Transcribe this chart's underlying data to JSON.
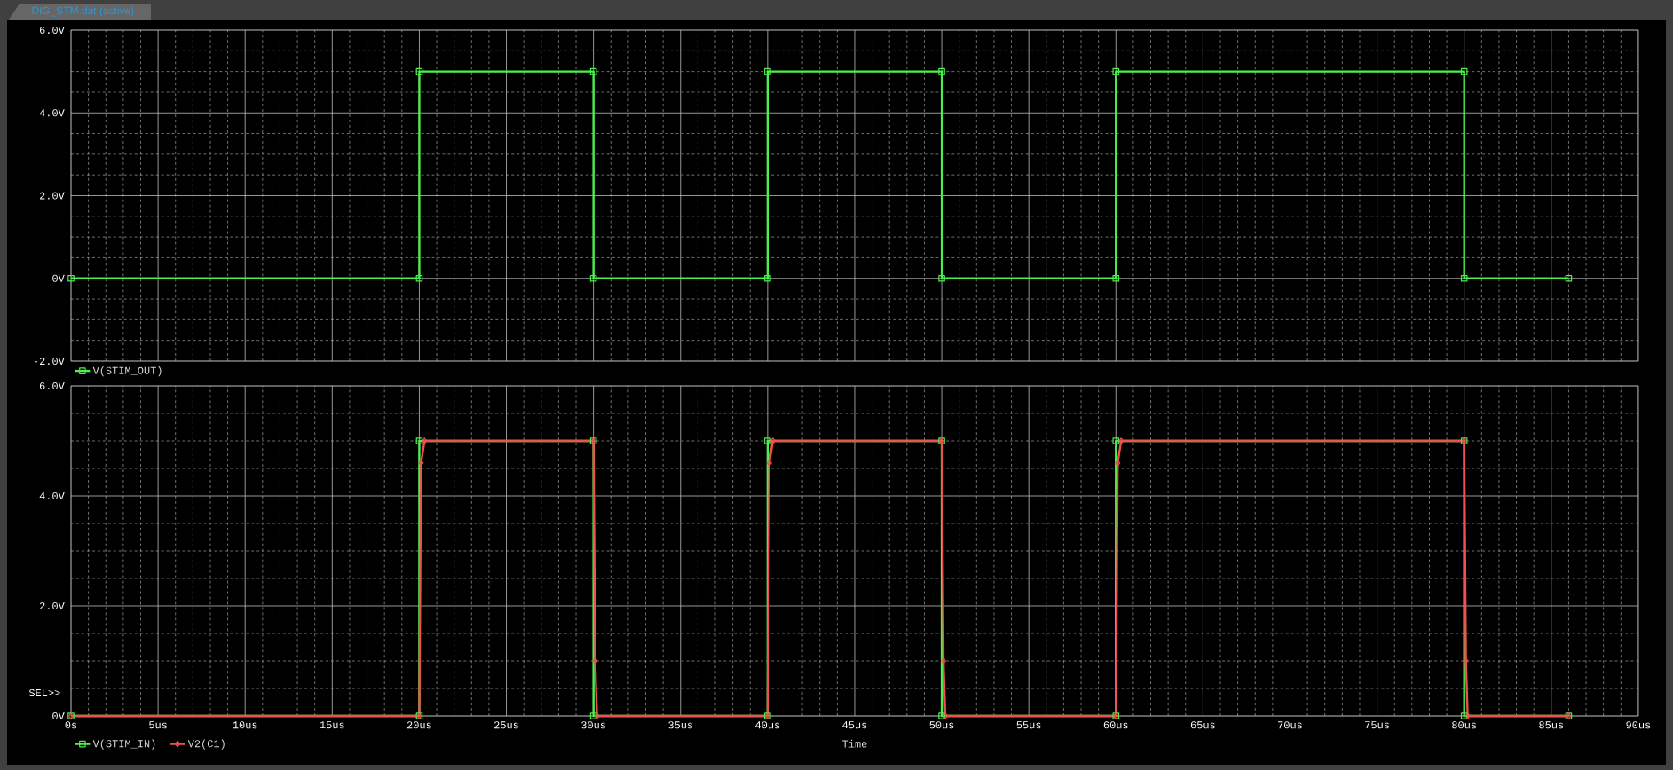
{
  "chart_data": [
    {
      "type": "line",
      "title": "DIG_STM.dat (active)",
      "xlim": [
        0,
        90
      ],
      "ylim": [
        -2,
        6
      ],
      "xticks": [
        0,
        5,
        10,
        15,
        20,
        25,
        30,
        35,
        40,
        45,
        50,
        55,
        60,
        65,
        70,
        75,
        80,
        85,
        90
      ],
      "yticks": [
        {
          "value": -2,
          "label": "-2.0V"
        },
        {
          "value": 0,
          "label": "0V"
        },
        {
          "value": 2,
          "label": "2.0V"
        },
        {
          "value": 4,
          "label": "4.0V"
        },
        {
          "value": 6,
          "label": "6.0V"
        }
      ],
      "tick_labels": "y",
      "grid": true,
      "legend": "bottom left",
      "marker": "square",
      "line_style": "solid",
      "series": [
        {
          "name": "V(STIM_OUT)",
          "color": "#4cf04c",
          "x": [
            0,
            20,
            20,
            30,
            30,
            40,
            40,
            50,
            50,
            60,
            60,
            80,
            80,
            86
          ],
          "values": [
            0,
            0,
            5,
            5,
            0,
            0,
            5,
            5,
            0,
            0,
            5,
            5,
            0,
            0
          ]
        }
      ]
    },
    {
      "type": "line",
      "xlabel": "Time",
      "xlim": [
        0,
        90
      ],
      "ylim": [
        0,
        6
      ],
      "xticks": [
        {
          "value": 0,
          "label": "0s"
        },
        {
          "value": 5,
          "label": "5us"
        },
        {
          "value": 10,
          "label": "10us"
        },
        {
          "value": 15,
          "label": "15us"
        },
        {
          "value": 20,
          "label": "20us"
        },
        {
          "value": 25,
          "label": "25us"
        },
        {
          "value": 30,
          "label": "30us"
        },
        {
          "value": 35,
          "label": "35us"
        },
        {
          "value": 40,
          "label": "40us"
        },
        {
          "value": 45,
          "label": "45us"
        },
        {
          "value": 50,
          "label": "50us"
        },
        {
          "value": 55,
          "label": "55us"
        },
        {
          "value": 60,
          "label": "60us"
        },
        {
          "value": 65,
          "label": "65us"
        },
        {
          "value": 70,
          "label": "70us"
        },
        {
          "value": 75,
          "label": "75us"
        },
        {
          "value": 80,
          "label": "80us"
        },
        {
          "value": 85,
          "label": "85us"
        },
        {
          "value": 90,
          "label": "90us"
        }
      ],
      "yticks": [
        {
          "value": 0,
          "label": "0V"
        },
        {
          "value": 2,
          "label": "2.0V"
        },
        {
          "value": 4,
          "label": "4.0V"
        },
        {
          "value": 6,
          "label": "6.0V"
        }
      ],
      "grid": true,
      "legend": "bottom left",
      "line_style": "solid",
      "annotations": [
        "SEL>>"
      ],
      "series": [
        {
          "name": "V(STIM_IN)",
          "color": "#4cf04c",
          "marker": "square",
          "x": [
            0,
            20,
            20,
            30,
            30,
            40,
            40,
            50,
            50,
            60,
            60,
            80,
            80,
            86
          ],
          "values": [
            0,
            0,
            5,
            5,
            0,
            0,
            5,
            5,
            0,
            0,
            5,
            5,
            0,
            0
          ]
        },
        {
          "name": "V2(C1)",
          "color": "#f05050",
          "marker": "diamond",
          "x": [
            0,
            20,
            20.1,
            20.3,
            30,
            30.1,
            30.2,
            40,
            40.1,
            40.3,
            50,
            50.1,
            50.2,
            60,
            60.1,
            60.3,
            80,
            80.1,
            80.2,
            86
          ],
          "values": [
            0,
            0,
            4.6,
            5,
            5,
            1.0,
            0,
            0,
            4.6,
            5,
            5,
            1.0,
            0,
            0,
            4.6,
            5,
            5,
            1.0,
            0,
            0
          ]
        }
      ]
    }
  ]
}
